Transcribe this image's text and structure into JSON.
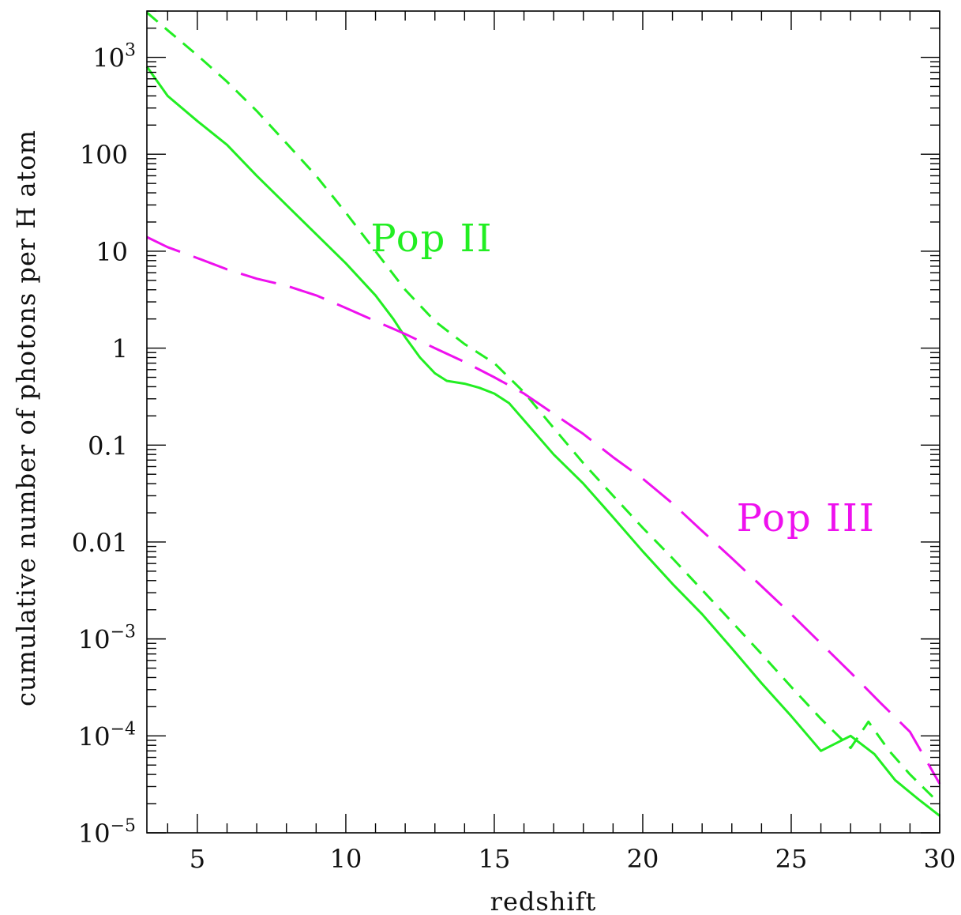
{
  "chart_data": {
    "type": "line",
    "title": "",
    "xlabel": "redshift",
    "ylabel": "cumulative number of photons per H atom",
    "xlim": [
      3.3,
      30
    ],
    "ylim": [
      1e-05,
      3000
    ],
    "yscale": "log",
    "grid": false,
    "legend": "none",
    "x_ticks": [
      {
        "value": 5,
        "label": "5"
      },
      {
        "value": 10,
        "label": "10"
      },
      {
        "value": 15,
        "label": "15"
      },
      {
        "value": 20,
        "label": "20"
      },
      {
        "value": 25,
        "label": "25"
      },
      {
        "value": 30,
        "label": "30"
      }
    ],
    "y_ticks": [
      {
        "value": 1e-05,
        "base": "10",
        "exp": "−5"
      },
      {
        "value": 0.0001,
        "base": "10",
        "exp": "−4"
      },
      {
        "value": 0.001,
        "base": "10",
        "exp": "−3"
      },
      {
        "value": 0.01,
        "base": "0.01",
        "exp": ""
      },
      {
        "value": 0.1,
        "base": "0.1",
        "exp": ""
      },
      {
        "value": 1,
        "base": "1",
        "exp": ""
      },
      {
        "value": 10,
        "base": "10",
        "exp": ""
      },
      {
        "value": 100,
        "base": "100",
        "exp": ""
      },
      {
        "value": 1000,
        "base": "10",
        "exp": "3"
      }
    ],
    "series": [
      {
        "color": "#22ee22",
        "dash": "solid",
        "x": [
          3.3,
          4,
          5,
          6,
          7,
          8,
          9,
          10,
          11,
          11.6,
          12,
          12.5,
          13,
          13.4,
          14,
          14.5,
          15,
          15.5,
          16,
          17,
          18,
          19,
          20,
          21,
          22,
          23,
          24,
          25,
          26,
          27,
          27.8,
          28.5,
          29.3,
          30
        ],
        "y": [
          800,
          400,
          220,
          125,
          60,
          30,
          15,
          7.5,
          3.5,
          2,
          1.3,
          0.8,
          0.55,
          0.46,
          0.43,
          0.39,
          0.34,
          0.27,
          0.18,
          0.08,
          0.04,
          0.018,
          0.008,
          0.0037,
          0.0018,
          0.0008,
          0.00035,
          0.00016,
          7e-05,
          0.0001,
          6.5e-05,
          3.5e-05,
          2.2e-05,
          1.5e-05
        ]
      },
      {
        "color": "#22ee22",
        "dash": "short-dash",
        "x": [
          3.3,
          4,
          5,
          6,
          7,
          8,
          9,
          10,
          11,
          12,
          13,
          14,
          15,
          16,
          17,
          18,
          19,
          20,
          21,
          22,
          23,
          24,
          25,
          26,
          27,
          27.6,
          28.3,
          29,
          30
        ],
        "y": [
          2900,
          1900,
          1050,
          560,
          280,
          130,
          60,
          25,
          10,
          4,
          1.9,
          1.1,
          0.7,
          0.35,
          0.15,
          0.065,
          0.03,
          0.014,
          0.0068,
          0.0032,
          0.0015,
          0.0007,
          0.00032,
          0.00015,
          7.5e-05,
          0.00014,
          7e-05,
          4e-05,
          2e-05
        ]
      },
      {
        "color": "#ee11ee",
        "dash": "long-dash",
        "x": [
          3.3,
          4,
          5,
          6,
          7,
          8,
          9,
          10,
          11,
          12,
          13,
          14,
          15,
          16,
          17,
          18,
          19,
          20,
          21,
          22,
          23,
          24,
          25,
          26,
          27,
          28,
          29,
          30
        ],
        "y": [
          14,
          11,
          8.5,
          6.5,
          5.2,
          4.4,
          3.5,
          2.6,
          1.9,
          1.4,
          1.0,
          0.72,
          0.5,
          0.34,
          0.21,
          0.13,
          0.075,
          0.045,
          0.025,
          0.013,
          0.0068,
          0.0035,
          0.0018,
          0.0009,
          0.00045,
          0.00022,
          0.00011,
          3.2e-05
        ]
      }
    ],
    "annotations": [
      {
        "text": "Pop II",
        "color": "#22ee22",
        "x": 12.9,
        "y": 10
      },
      {
        "text": "Pop III",
        "color": "#ee11ee",
        "x": 25.5,
        "y": 0.013
      }
    ]
  }
}
